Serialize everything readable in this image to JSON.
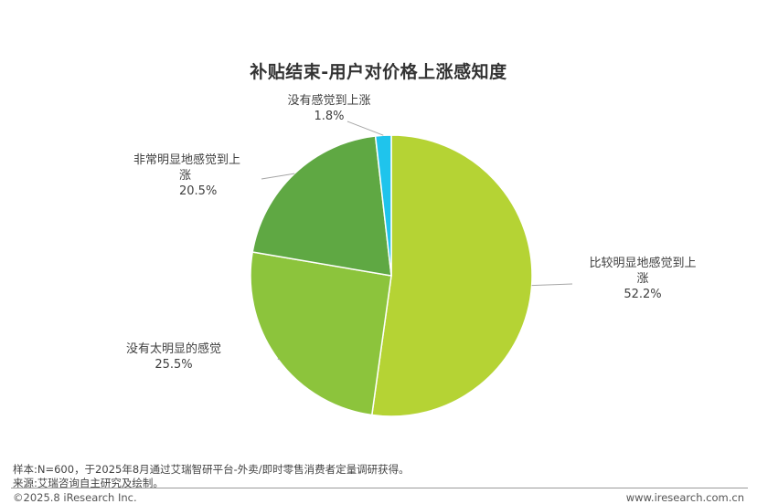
{
  "chart_data": {
    "type": "pie",
    "title": "补贴结束-用户对价格上涨感知度",
    "slices": [
      {
        "label_lines": [
          "比较明显地感觉到上",
          "涨"
        ],
        "value": 52.2,
        "value_text": "52.2%",
        "color": "#b5d334"
      },
      {
        "label_lines": [
          "没有太明显的感觉"
        ],
        "value": 25.5,
        "value_text": "25.5%",
        "color": "#8cc43c"
      },
      {
        "label_lines": [
          "非常明显地感觉到上",
          "涨"
        ],
        "value": 20.5,
        "value_text": "20.5%",
        "color": "#5fa843"
      },
      {
        "label_lines": [
          "没有感觉到上涨"
        ],
        "value": 1.8,
        "value_text": "1.8%",
        "color": "#1fc4ec"
      }
    ],
    "start_angle_deg": 0,
    "direction": "clockwise"
  },
  "footer": {
    "sample_note": "样本:N=600，于2025年8月通过艾瑞智研平台-外卖/即时零售消费者定量调研获得。",
    "source_note": "来源:艾瑞咨询自主研究及绘制。",
    "copyright": "©2025.8 iResearch Inc.",
    "website": "www.iresearch.com.cn"
  }
}
